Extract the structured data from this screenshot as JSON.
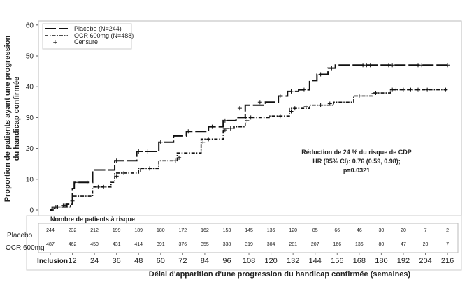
{
  "chart_data": {
    "type": "line",
    "subtype": "kaplan-meier",
    "ylabel_line1": "Proportion de patients ayant une progression",
    "ylabel_line2": "du handicap confirmée",
    "xlabel": "Délai d'apparition d'une progression du handicap confirmée (semaines)",
    "ylim": [
      0,
      60
    ],
    "xlim": [
      0,
      216
    ],
    "yticks": [
      0,
      10,
      20,
      30,
      40,
      50,
      60
    ],
    "xticks": [
      0,
      12,
      24,
      36,
      48,
      60,
      72,
      84,
      96,
      108,
      120,
      132,
      144,
      156,
      168,
      180,
      192,
      204,
      216
    ],
    "xtick_labels": [
      "Inclusion",
      "12",
      "24",
      "36",
      "48",
      "60",
      "72",
      "84",
      "96",
      "108",
      "120",
      "132",
      "144",
      "156",
      "168",
      "180",
      "192",
      "204",
      "216"
    ],
    "legend": {
      "placement": "top-left",
      "entries": [
        "Placebo (N=244)",
        "OCR 600mg (N=488)",
        "Censure"
      ]
    },
    "series": [
      {
        "name": "Placebo (N=244)",
        "style": "long-dash",
        "steps": [
          [
            0,
            0
          ],
          [
            1,
            1
          ],
          [
            9,
            2
          ],
          [
            12,
            7
          ],
          [
            13,
            9
          ],
          [
            23,
            13
          ],
          [
            35,
            16
          ],
          [
            47,
            19
          ],
          [
            59,
            22
          ],
          [
            67,
            24
          ],
          [
            74,
            25.5
          ],
          [
            86,
            27
          ],
          [
            94,
            29
          ],
          [
            101,
            30
          ],
          [
            106,
            34
          ],
          [
            117,
            35
          ],
          [
            124,
            37
          ],
          [
            129,
            38.5
          ],
          [
            135,
            39
          ],
          [
            141,
            42
          ],
          [
            145,
            44
          ],
          [
            151,
            46
          ],
          [
            155,
            47
          ],
          [
            216,
            47
          ]
        ],
        "censored": [
          [
            4,
            1
          ],
          [
            7,
            1.5
          ],
          [
            15,
            9
          ],
          [
            20,
            9
          ],
          [
            36,
            16
          ],
          [
            48,
            19
          ],
          [
            53,
            19
          ],
          [
            60,
            22
          ],
          [
            75,
            25.5
          ],
          [
            88,
            27
          ],
          [
            95,
            29
          ],
          [
            103,
            33
          ],
          [
            114,
            35
          ],
          [
            125,
            37
          ],
          [
            131,
            38.5
          ],
          [
            138,
            39
          ],
          [
            147,
            44
          ],
          [
            153,
            46
          ],
          [
            170,
            47
          ],
          [
            172,
            47
          ],
          [
            174,
            47
          ],
          [
            184,
            47
          ],
          [
            186,
            47
          ],
          [
            200,
            47
          ],
          [
            202,
            47
          ],
          [
            216,
            47
          ]
        ]
      },
      {
        "name": "OCR 600mg (N=488)",
        "style": "dash-dot",
        "steps": [
          [
            0,
            0
          ],
          [
            2,
            1
          ],
          [
            11,
            2
          ],
          [
            12,
            4.5
          ],
          [
            23,
            7.5
          ],
          [
            33,
            9
          ],
          [
            35,
            12
          ],
          [
            48,
            13.5
          ],
          [
            59,
            16
          ],
          [
            69,
            18.5
          ],
          [
            82,
            23
          ],
          [
            94,
            26.5
          ],
          [
            100,
            27
          ],
          [
            106,
            30
          ],
          [
            119,
            30.5
          ],
          [
            130,
            33
          ],
          [
            141,
            34
          ],
          [
            154,
            35
          ],
          [
            165,
            37
          ],
          [
            175,
            38
          ],
          [
            185,
            39
          ],
          [
            216,
            39
          ]
        ],
        "censored": [
          [
            3,
            1
          ],
          [
            8,
            1.5
          ],
          [
            12,
            3
          ],
          [
            26,
            7.5
          ],
          [
            29,
            7.5
          ],
          [
            36,
            11
          ],
          [
            40,
            12
          ],
          [
            49,
            13
          ],
          [
            54,
            13.5
          ],
          [
            68,
            16
          ],
          [
            70,
            17
          ],
          [
            83,
            22
          ],
          [
            86,
            23
          ],
          [
            95,
            26
          ],
          [
            98,
            26.5
          ],
          [
            107,
            29
          ],
          [
            109,
            30
          ],
          [
            125,
            30.5
          ],
          [
            131,
            32
          ],
          [
            133,
            33
          ],
          [
            139,
            33.5
          ],
          [
            147,
            34
          ],
          [
            152,
            34.5
          ],
          [
            168,
            37
          ],
          [
            177,
            38
          ],
          [
            186,
            39
          ],
          [
            188,
            39
          ],
          [
            192,
            39
          ],
          [
            196,
            39
          ],
          [
            200,
            39
          ],
          [
            205,
            39
          ],
          [
            215,
            39
          ]
        ]
      }
    ],
    "annotation": [
      "Réduction de 24 % du risque de CDP",
      "HR (95% CI): 0.76 (0.59, 0.98);",
      "p=0.0321"
    ],
    "risk_table": {
      "title": "Nombre de patients à risque",
      "rows": [
        {
          "label": "Placebo",
          "values": [
            "244",
            "232",
            "212",
            "199",
            "189",
            "180",
            "172",
            "162",
            "153",
            "145",
            "136",
            "120",
            "85",
            "66",
            "46",
            "30",
            "20",
            "7",
            "2"
          ]
        },
        {
          "label": "OCR 600mg",
          "values": [
            "487",
            "462",
            "450",
            "431",
            "414",
            "391",
            "376",
            "355",
            "338",
            "319",
            "304",
            "281",
            "207",
            "166",
            "136",
            "80",
            "47",
            "20",
            "7"
          ]
        }
      ]
    }
  }
}
